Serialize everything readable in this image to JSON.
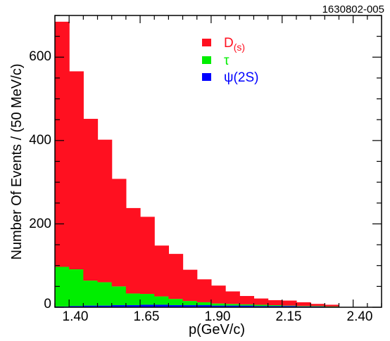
{
  "figure_id": "1630802-005",
  "chart_data": {
    "type": "bar",
    "stacked": true,
    "xlabel": "p(GeV/c)",
    "ylabel": "Number Of Events / (50 MeV/c)",
    "xlim": [
      1.35,
      2.5
    ],
    "ylim": [
      0,
      700
    ],
    "xticks": [
      "1.40",
      "1.65",
      "1.90",
      "2.15",
      "2.40"
    ],
    "yticks": [
      "0",
      "200",
      "400",
      "600"
    ],
    "bin_edges": [
      1.35,
      1.4,
      1.45,
      1.5,
      1.55,
      1.6,
      1.65,
      1.7,
      1.75,
      1.8,
      1.85,
      1.9,
      1.95,
      2.0,
      2.05,
      2.1,
      2.15,
      2.2,
      2.25,
      2.3,
      2.35
    ],
    "series": [
      {
        "name": "ψ(2S)",
        "color": "#0000ff",
        "values": [
          2,
          3,
          4,
          4,
          5,
          5,
          6,
          6,
          5,
          5,
          5,
          4,
          4,
          4,
          3,
          3,
          3,
          2,
          2,
          1
        ]
      },
      {
        "name": "τ",
        "color": "#00ee00",
        "values": [
          95,
          88,
          60,
          56,
          45,
          28,
          26,
          20,
          15,
          10,
          7,
          5,
          4,
          3,
          3,
          2,
          1,
          1,
          1,
          1
        ]
      },
      {
        "name": "D(s)",
        "color": "#ff1020",
        "values": [
          588,
          475,
          388,
          342,
          258,
          205,
          185,
          122,
          108,
          75,
          55,
          43,
          30,
          20,
          15,
          12,
          12,
          9,
          5,
          4
        ]
      }
    ],
    "legend": {
      "placement": "top-right",
      "entries": [
        {
          "main": "D",
          "sub": "(s)",
          "color": "#ff1020"
        },
        {
          "main": "τ",
          "sub": "",
          "color": "#00ee00"
        },
        {
          "main": "ψ(2S)",
          "sub": "",
          "color": "#0000ff"
        }
      ]
    }
  }
}
